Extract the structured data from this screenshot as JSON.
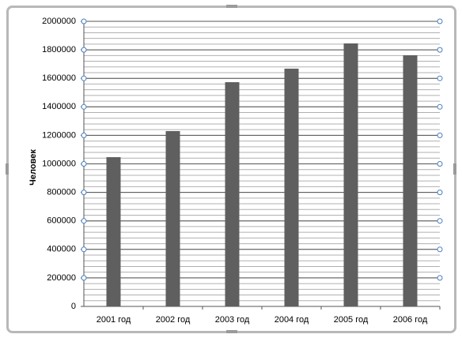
{
  "chart_data": {
    "type": "bar",
    "y_label": "Человек",
    "categories": [
      "2001 год",
      "2002 год",
      "2003 год",
      "2004 год",
      "2005 год",
      "2006 год"
    ],
    "values": [
      1047000,
      1230000,
      1573000,
      1668000,
      1845000,
      1762000
    ],
    "color": "#5f5f5f",
    "ylim": [
      0,
      2000000
    ],
    "yticks": [
      0,
      200000,
      400000,
      600000,
      800000,
      1000000,
      1200000,
      1400000,
      1600000,
      1800000,
      2000000
    ],
    "grid": true,
    "minor_grid_step": 40000
  }
}
